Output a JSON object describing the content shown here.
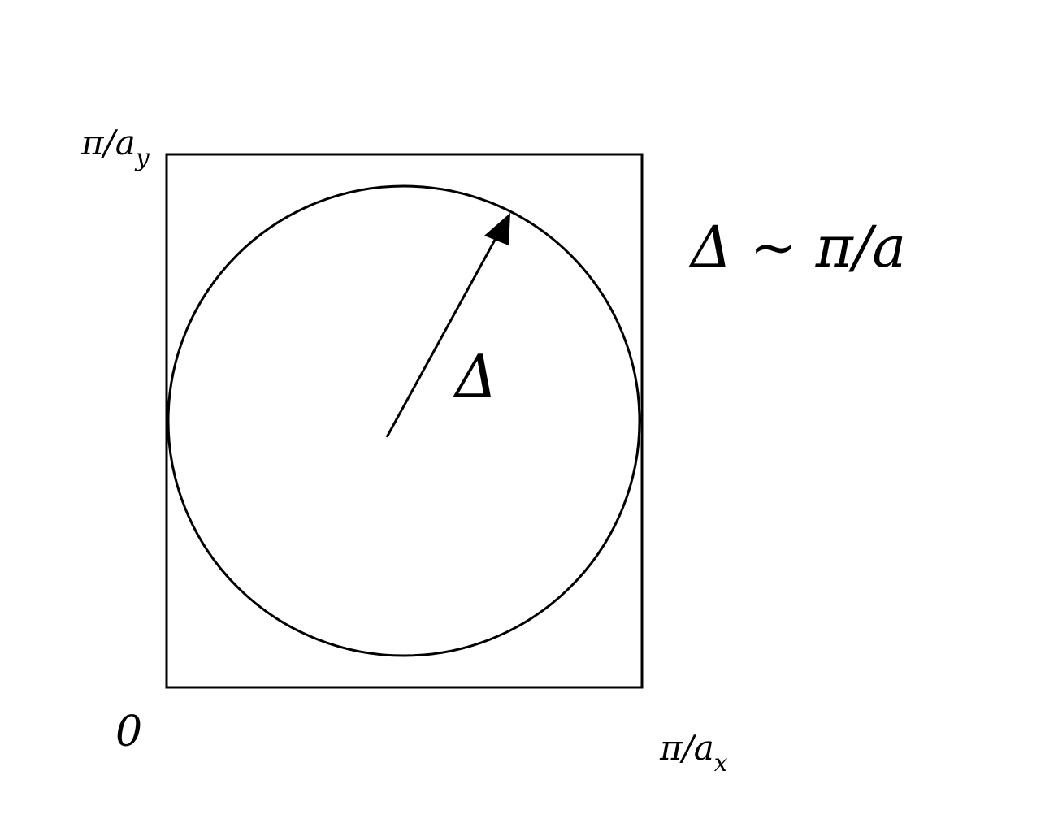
{
  "axis_labels": {
    "y_max": {
      "main": "π/a",
      "sub": "y"
    },
    "origin": "0",
    "x_max": {
      "main": "π/a",
      "sub": "x"
    }
  },
  "radius_label": "Δ",
  "relation": "Δ ~ π/a"
}
